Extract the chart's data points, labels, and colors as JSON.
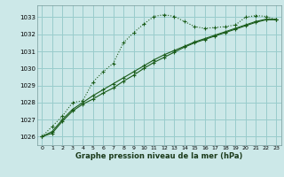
{
  "xlabel": "Graphe pression niveau de la mer (hPa)",
  "bg_color": "#cce8e8",
  "grid_color": "#99cccc",
  "line_color": "#1a5c1a",
  "ylim": [
    1025.5,
    1033.7
  ],
  "xlim": [
    -0.5,
    23.5
  ],
  "yticks": [
    1026,
    1027,
    1028,
    1029,
    1030,
    1031,
    1032,
    1033
  ],
  "xticks": [
    0,
    1,
    2,
    3,
    4,
    5,
    6,
    7,
    8,
    9,
    10,
    11,
    12,
    13,
    14,
    15,
    16,
    17,
    18,
    19,
    20,
    21,
    22,
    23
  ],
  "series1_x": [
    0,
    1,
    2,
    3,
    4,
    5,
    6,
    7,
    8,
    9,
    10,
    11,
    12,
    13,
    14,
    15,
    16,
    17,
    18,
    19,
    20,
    21,
    22,
    23
  ],
  "series1_y": [
    1026.0,
    1026.6,
    1027.2,
    1028.0,
    1028.1,
    1029.2,
    1029.8,
    1030.3,
    1031.5,
    1032.1,
    1032.6,
    1033.05,
    1033.15,
    1033.05,
    1032.75,
    1032.45,
    1032.35,
    1032.4,
    1032.45,
    1032.55,
    1033.0,
    1033.1,
    1033.05,
    1032.85
  ],
  "series2_x": [
    0,
    1,
    2,
    3,
    4,
    5,
    6,
    7,
    8,
    9,
    10,
    11,
    12,
    13,
    14,
    15,
    16,
    17,
    18,
    19,
    20,
    21,
    22,
    23
  ],
  "series2_y": [
    1026.0,
    1026.2,
    1026.9,
    1027.5,
    1027.9,
    1028.2,
    1028.55,
    1028.85,
    1029.25,
    1029.6,
    1030.0,
    1030.35,
    1030.65,
    1030.95,
    1031.25,
    1031.5,
    1031.7,
    1031.9,
    1032.1,
    1032.3,
    1032.5,
    1032.7,
    1032.85,
    1032.85
  ],
  "series3_x": [
    0,
    1,
    2,
    3,
    4,
    5,
    6,
    7,
    8,
    9,
    10,
    11,
    12,
    13,
    14,
    15,
    16,
    17,
    18,
    19,
    20,
    21,
    22,
    23
  ],
  "series3_y": [
    1026.0,
    1026.3,
    1027.0,
    1027.6,
    1028.0,
    1028.4,
    1028.75,
    1029.1,
    1029.45,
    1029.8,
    1030.15,
    1030.5,
    1030.8,
    1031.05,
    1031.3,
    1031.55,
    1031.75,
    1031.95,
    1032.15,
    1032.35,
    1032.55,
    1032.75,
    1032.88,
    1032.88
  ],
  "ylabel_fontsize": 5.5,
  "xlabel_fontsize": 6.0,
  "xtick_fontsize": 4.5,
  "ytick_fontsize": 5.0
}
